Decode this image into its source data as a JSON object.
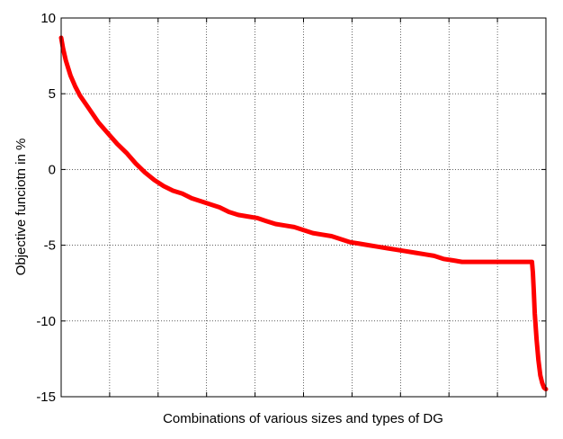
{
  "chart_data": {
    "type": "line",
    "title": "",
    "xlabel": "Combinations of various sizes and types of DG",
    "ylabel": "Objective funciotn in %",
    "ylim": [
      -15,
      10
    ],
    "xlim": [
      0,
      520
    ],
    "y_ticks": [
      10,
      5,
      0,
      -5,
      -10,
      -15
    ],
    "y_tick_labels": [
      "10",
      "5",
      "0",
      "-5",
      "-10",
      "-15"
    ],
    "x_tick_labels_shown": false,
    "grid": true,
    "legend": "none",
    "series": [
      {
        "color": "#ff0000",
        "x": [
          0,
          2,
          5,
          10,
          15,
          20,
          30,
          40,
          50,
          60,
          70,
          80,
          90,
          100,
          110,
          120,
          130,
          140,
          150,
          160,
          170,
          180,
          190,
          200,
          210,
          220,
          230,
          240,
          250,
          260,
          270,
          280,
          290,
          300,
          310,
          320,
          330,
          340,
          350,
          360,
          370,
          380,
          390,
          400,
          410,
          420,
          430,
          440,
          450,
          460,
          470,
          480,
          490,
          500,
          505,
          506,
          507,
          508,
          510,
          512,
          514,
          516,
          518,
          520
        ],
        "values": [
          8.7,
          8.0,
          7.2,
          6.2,
          5.5,
          4.9,
          4.0,
          3.1,
          2.4,
          1.7,
          1.1,
          0.4,
          -0.2,
          -0.7,
          -1.1,
          -1.4,
          -1.6,
          -1.9,
          -2.1,
          -2.3,
          -2.5,
          -2.8,
          -3.0,
          -3.1,
          -3.2,
          -3.4,
          -3.6,
          -3.7,
          -3.8,
          -4.0,
          -4.2,
          -4.3,
          -4.4,
          -4.6,
          -4.8,
          -4.9,
          -5.0,
          -5.1,
          -5.2,
          -5.3,
          -5.4,
          -5.5,
          -5.6,
          -5.7,
          -5.9,
          -6.0,
          -6.1,
          -6.1,
          -6.1,
          -6.1,
          -6.1,
          -6.1,
          -6.1,
          -6.1,
          -6.1,
          -6.8,
          -8.0,
          -9.5,
          -11.2,
          -12.6,
          -13.6,
          -14.1,
          -14.4,
          -14.5
        ]
      }
    ]
  }
}
